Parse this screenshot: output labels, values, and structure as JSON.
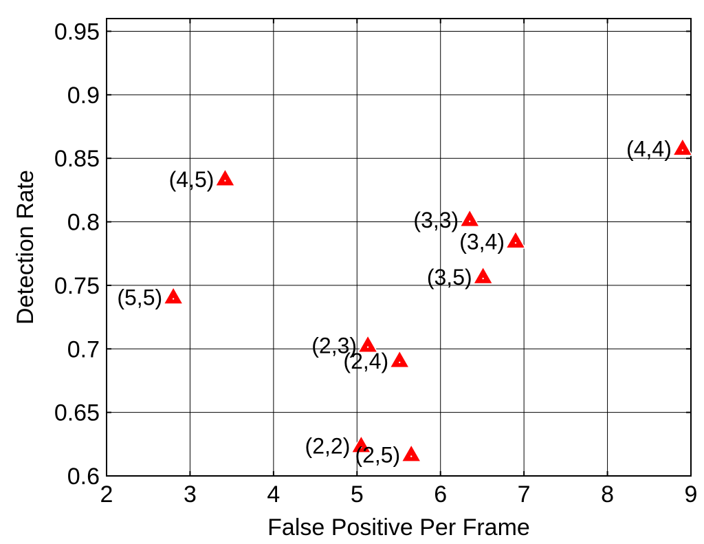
{
  "chart_data": {
    "type": "scatter",
    "title": "",
    "xlabel": "False Positive Per Frame",
    "ylabel": "Detection Rate",
    "xlim": [
      2,
      9
    ],
    "ylim": [
      0.6,
      0.96
    ],
    "xticks": [
      2,
      3,
      4,
      5,
      6,
      7,
      8,
      9
    ],
    "xtick_labels": [
      "2",
      "3",
      "4",
      "5",
      "6",
      "7",
      "8",
      "9"
    ],
    "yticks": [
      0.6,
      0.65,
      0.7,
      0.75,
      0.8,
      0.85,
      0.9,
      0.95
    ],
    "ytick_labels": [
      "0.6",
      "0.65",
      "0.7",
      "0.75",
      "0.8",
      "0.85",
      "0.9",
      "0.95"
    ],
    "grid": true,
    "marker": "triangle",
    "marker_color": "#ff0000",
    "points": [
      {
        "label": "(2,2)",
        "x": 5.05,
        "y": 0.624
      },
      {
        "label": "(2,3)",
        "x": 5.13,
        "y": 0.703
      },
      {
        "label": "(2,4)",
        "x": 5.51,
        "y": 0.691
      },
      {
        "label": "(2,5)",
        "x": 5.65,
        "y": 0.617
      },
      {
        "label": "(3,3)",
        "x": 6.35,
        "y": 0.802
      },
      {
        "label": "(3,4)",
        "x": 6.9,
        "y": 0.785
      },
      {
        "label": "(3,5)",
        "x": 6.51,
        "y": 0.757
      },
      {
        "label": "(4,4)",
        "x": 8.9,
        "y": 0.858
      },
      {
        "label": "(4,5)",
        "x": 3.42,
        "y": 0.834
      },
      {
        "label": "(5,5)",
        "x": 2.8,
        "y": 0.741
      }
    ]
  }
}
